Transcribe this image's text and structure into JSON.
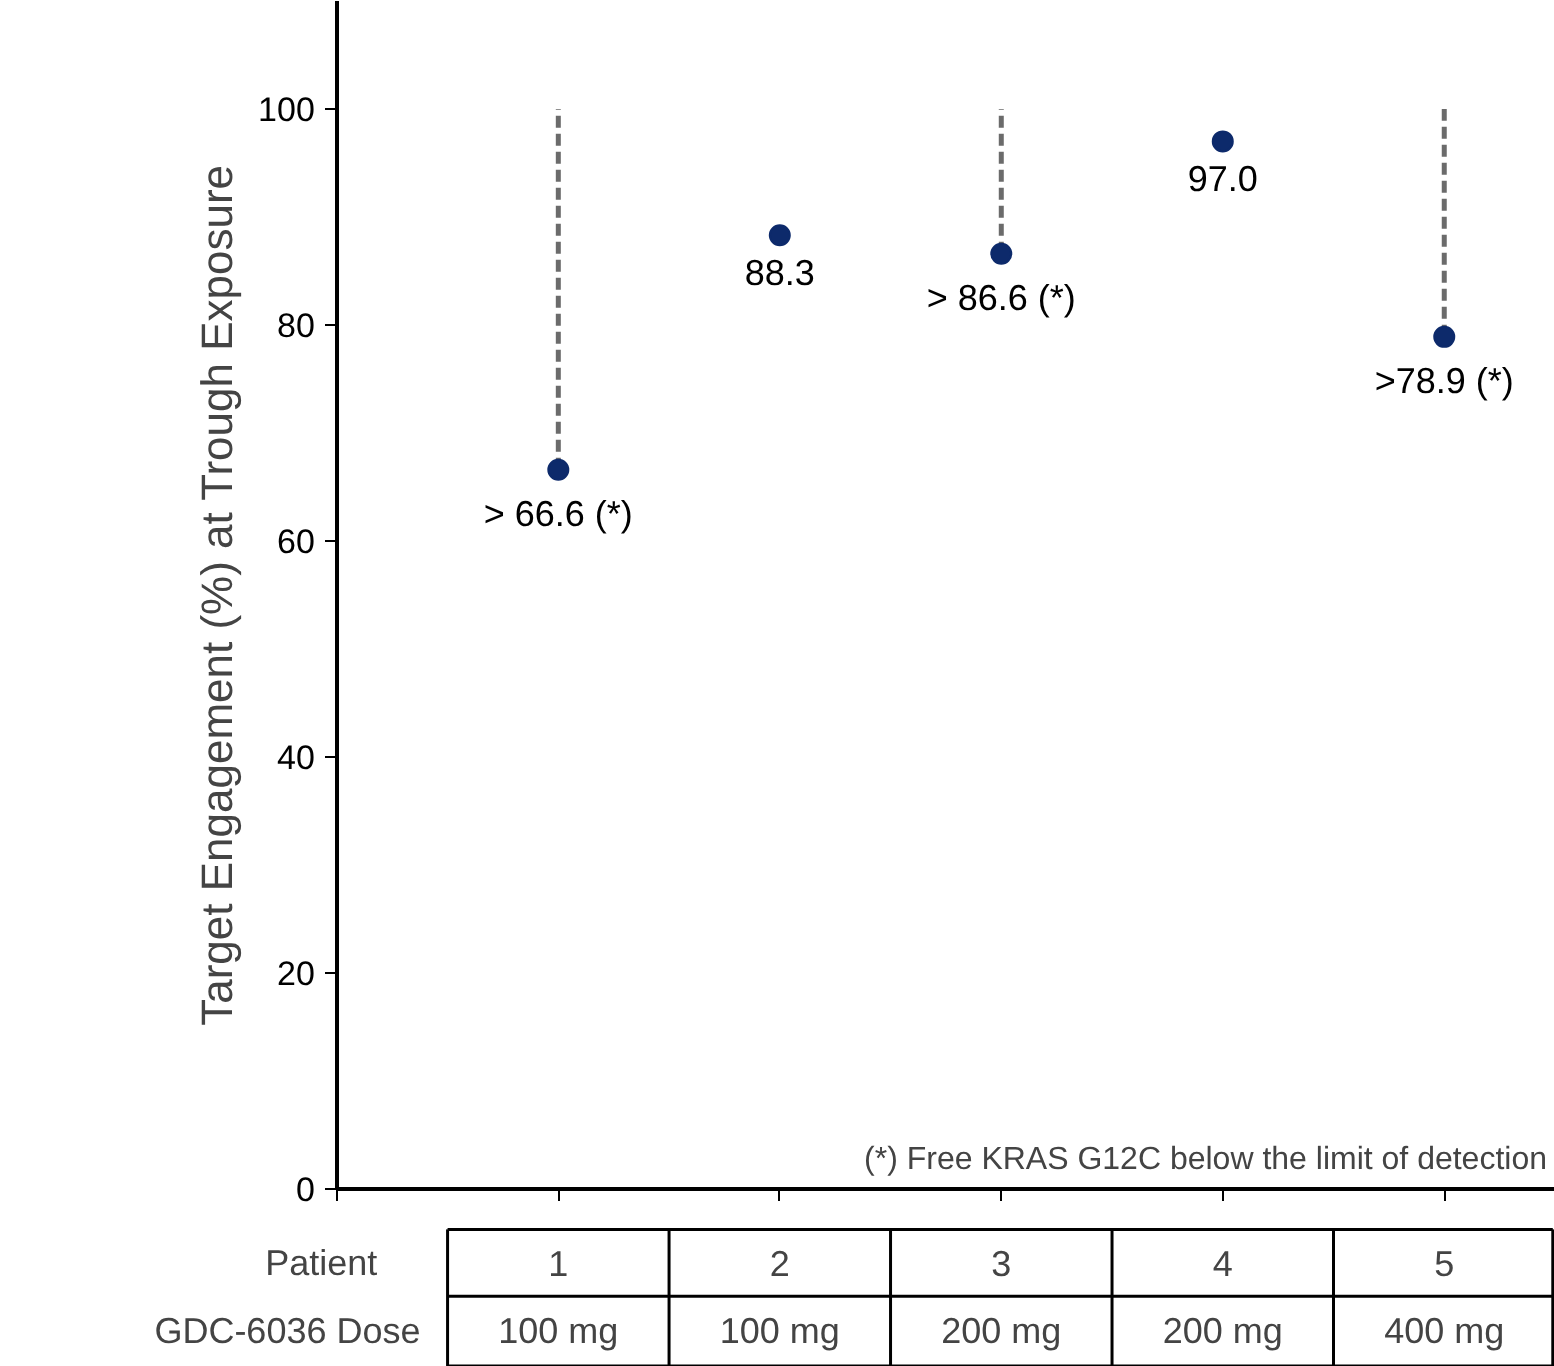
{
  "chart_data": {
    "type": "scatter",
    "ylabel": "Target Engagement (%) at Trough Exposure",
    "xlabel": "Patient",
    "categories": [
      "1",
      "2",
      "3",
      "4",
      "5"
    ],
    "series": [
      {
        "color": "#0d2a6b",
        "values": [
          66.6,
          88.3,
          86.6,
          97.0,
          78.9
        ],
        "errors": [
          [
            66.6,
            100
          ],
          null,
          [
            86.6,
            100
          ],
          null,
          [
            78.9,
            100
          ]
        ],
        "value_labels": [
          "> 66.6 (*)",
          "88.3",
          "> 86.6 (*)",
          "97.0",
          ">78.9 (*)"
        ]
      }
    ],
    "marker": "circle",
    "line_style": "dashed",
    "ylim": [
      0,
      110
    ],
    "yticks": [
      0,
      20,
      40,
      60,
      80,
      100
    ],
    "grid": false,
    "tick_labels": "y",
    "annotations": [
      "(*) Free KRAS G12C below the limit of detection",
      "GDC-6036 Dose",
      "100 mg",
      "100 mg",
      "200 mg",
      "200 mg",
      "400 mg"
    ]
  }
}
